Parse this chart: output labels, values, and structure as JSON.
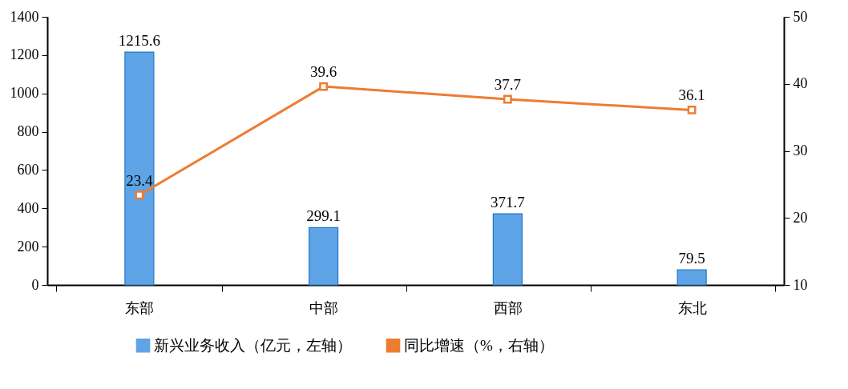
{
  "chart_data": {
    "type": "bar",
    "categories": [
      "东部",
      "中部",
      "西部",
      "东北"
    ],
    "series": [
      {
        "name": "新兴业务收入（亿元，左轴）",
        "color": "#5ea4e6",
        "values": [
          1215.6,
          299.1,
          371.7,
          79.5
        ]
      },
      {
        "name": "同比增速（%，右轴）",
        "type": "line",
        "axis": "y2",
        "color": "#ed7d31",
        "values": [
          23.4,
          39.6,
          37.7,
          36.1
        ]
      }
    ],
    "ylim": [
      0,
      1400
    ],
    "yticks": [
      0,
      200,
      400,
      600,
      800,
      1000,
      1200,
      1400
    ],
    "y2lim": [
      10,
      50
    ],
    "y2ticks": [
      10,
      20,
      30,
      40,
      50
    ],
    "data_labels": true,
    "legend": "bottom",
    "grid": false,
    "marker": "square",
    "line_style": "solid"
  }
}
